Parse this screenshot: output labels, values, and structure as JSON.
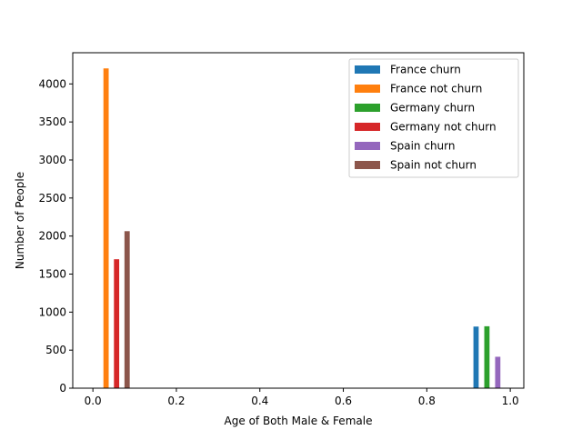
{
  "chart_data": {
    "type": "bar",
    "title": "",
    "xlabel": "Age of Both Male & Female",
    "ylabel": "Number of People",
    "xlim": [
      -0.0483,
      1.0324
    ],
    "ylim": [
      0,
      4410
    ],
    "xticks": [
      0.0,
      0.2,
      0.4,
      0.6,
      0.8,
      1.0
    ],
    "xtick_labels": [
      "0.0",
      "0.2",
      "0.4",
      "0.6",
      "0.8",
      "1.0"
    ],
    "yticks": [
      0,
      500,
      1000,
      1500,
      2000,
      2500,
      3000,
      3500,
      4000
    ],
    "ytick_labels": [
      "0",
      "500",
      "1000",
      "1500",
      "2000",
      "2500",
      "3000",
      "3500",
      "4000"
    ],
    "grid": false,
    "legend_position": "top-right",
    "bar_width": 0.0126,
    "series": [
      {
        "name": "France churn",
        "color": "#1f77b4",
        "bars": [
          {
            "x": 0.918,
            "value": 810
          }
        ]
      },
      {
        "name": "France not churn",
        "color": "#ff7f0e",
        "bars": [
          {
            "x": 0.0315,
            "value": 4204
          }
        ]
      },
      {
        "name": "Germany churn",
        "color": "#2ca02c",
        "bars": [
          {
            "x": 0.944,
            "value": 814
          }
        ]
      },
      {
        "name": "Germany not churn",
        "color": "#d62728",
        "bars": [
          {
            "x": 0.0567,
            "value": 1695
          }
        ]
      },
      {
        "name": "Spain churn",
        "color": "#9467bd",
        "bars": [
          {
            "x": 0.97,
            "value": 413
          }
        ]
      },
      {
        "name": "Spain not churn",
        "color": "#8c564b",
        "bars": [
          {
            "x": 0.0819,
            "value": 2064
          }
        ]
      }
    ]
  }
}
